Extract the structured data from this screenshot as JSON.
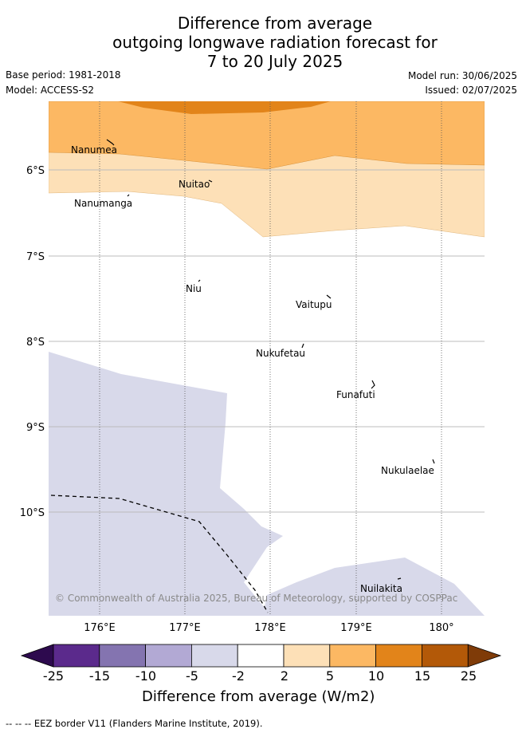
{
  "title": {
    "line1": "Difference from average",
    "line2": "outgoing longwave radiation forecast for",
    "line3": "7 to 20 July 2025"
  },
  "meta": {
    "base_period": "Base period: 1981-2018",
    "model": "Model: ACCESS-S2",
    "model_run": "Model run: 30/06/2025",
    "issued": "Issued: 02/07/2025"
  },
  "map": {
    "lat_labels": [
      "6°S",
      "7°S",
      "8°S",
      "9°S",
      "10°S"
    ],
    "lon_labels": [
      "176°E",
      "177°E",
      "178°E",
      "179°E",
      "180°"
    ],
    "places": [
      "Nanumea",
      "Nuitao",
      "Nanumanga",
      "Niu",
      "Vaitupu",
      "Nukufetau",
      "Funafuti",
      "Nukulaelae",
      "Nuilakita"
    ],
    "copyright": "© Commonwealth of Australia 2025, Bureau of Meteorology, supported by COSPPac"
  },
  "colorbar": {
    "ticks": [
      "-25",
      "-15",
      "-10",
      "-5",
      "-2",
      "2",
      "5",
      "10",
      "15",
      "25"
    ],
    "colors": [
      "#5b2a8c",
      "#8474b0",
      "#b2a9d4",
      "#d8d9ea",
      "#ffffff",
      "#fde0b7",
      "#fcb863",
      "#e2841a",
      "#b35908"
    ],
    "under_color": "#2d0a4e",
    "over_color": "#7f3b08",
    "label": "Difference from average (W/m2)"
  },
  "footnote": "-- -- -- EEZ border V11 (Flanders Marine Institute, 2019)."
}
